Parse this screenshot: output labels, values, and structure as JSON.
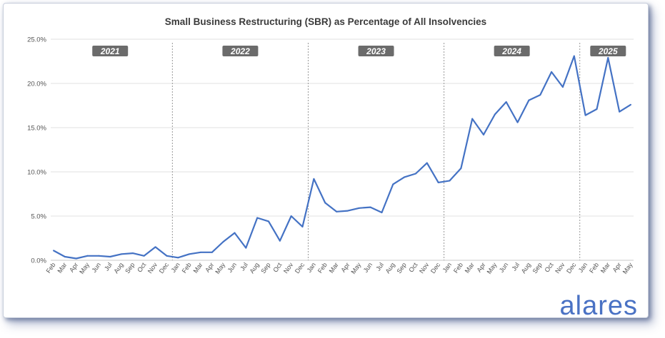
{
  "brand": {
    "logo_text": "alares",
    "color": "#4a72c4"
  },
  "chart_data": {
    "type": "line",
    "title": "Small Business Restructuring (SBR) as Percentage of All Insolvencies",
    "xlabel": "",
    "ylabel": "",
    "ylim": [
      0,
      25
    ],
    "y_ticks": [
      "0.0%",
      "5.0%",
      "10.0%",
      "15.0%",
      "20.0%",
      "25.0%"
    ],
    "grid": true,
    "line_color": "#4472c4",
    "categories": [
      "Feb",
      "Mar",
      "Apr",
      "May",
      "Jun",
      "Jul",
      "Aug",
      "Sep",
      "Oct",
      "Nov",
      "Dec",
      "Jan",
      "Feb",
      "Mar",
      "Apr",
      "May",
      "Jun",
      "Jul",
      "Aug",
      "Sep",
      "Oct",
      "Nov",
      "Dec",
      "Jan",
      "Feb",
      "Mar",
      "Apr",
      "May",
      "Jun",
      "Jul",
      "Aug",
      "Sep",
      "Oct",
      "Nov",
      "Dec",
      "Jan",
      "Feb",
      "Mar",
      "Apr",
      "May",
      "Jun",
      "Jul",
      "Aug",
      "Sep",
      "Oct",
      "Nov",
      "Dec",
      "Jan",
      "Feb",
      "Mar",
      "Apr",
      "May"
    ],
    "values": [
      1.1,
      0.4,
      0.2,
      0.5,
      0.5,
      0.4,
      0.7,
      0.8,
      0.5,
      1.5,
      0.5,
      0.3,
      0.7,
      0.9,
      0.9,
      2.1,
      3.1,
      1.4,
      4.8,
      4.4,
      2.2,
      5.0,
      3.8,
      9.2,
      6.5,
      5.5,
      5.6,
      5.9,
      6.0,
      5.4,
      8.6,
      9.4,
      9.8,
      11.0,
      8.8,
      9.0,
      10.4,
      16.0,
      14.2,
      16.5,
      17.9,
      15.6,
      18.1,
      18.7,
      21.3,
      19.6,
      23.1,
      16.4,
      17.1,
      22.9,
      16.8,
      17.6
    ],
    "year_labels": [
      {
        "label": "2021",
        "start": 0,
        "end": 10
      },
      {
        "label": "2022",
        "start": 11,
        "end": 22
      },
      {
        "label": "2023",
        "start": 23,
        "end": 34
      },
      {
        "label": "2024",
        "start": 35,
        "end": 46
      },
      {
        "label": "2025",
        "start": 47,
        "end": 51
      }
    ]
  }
}
